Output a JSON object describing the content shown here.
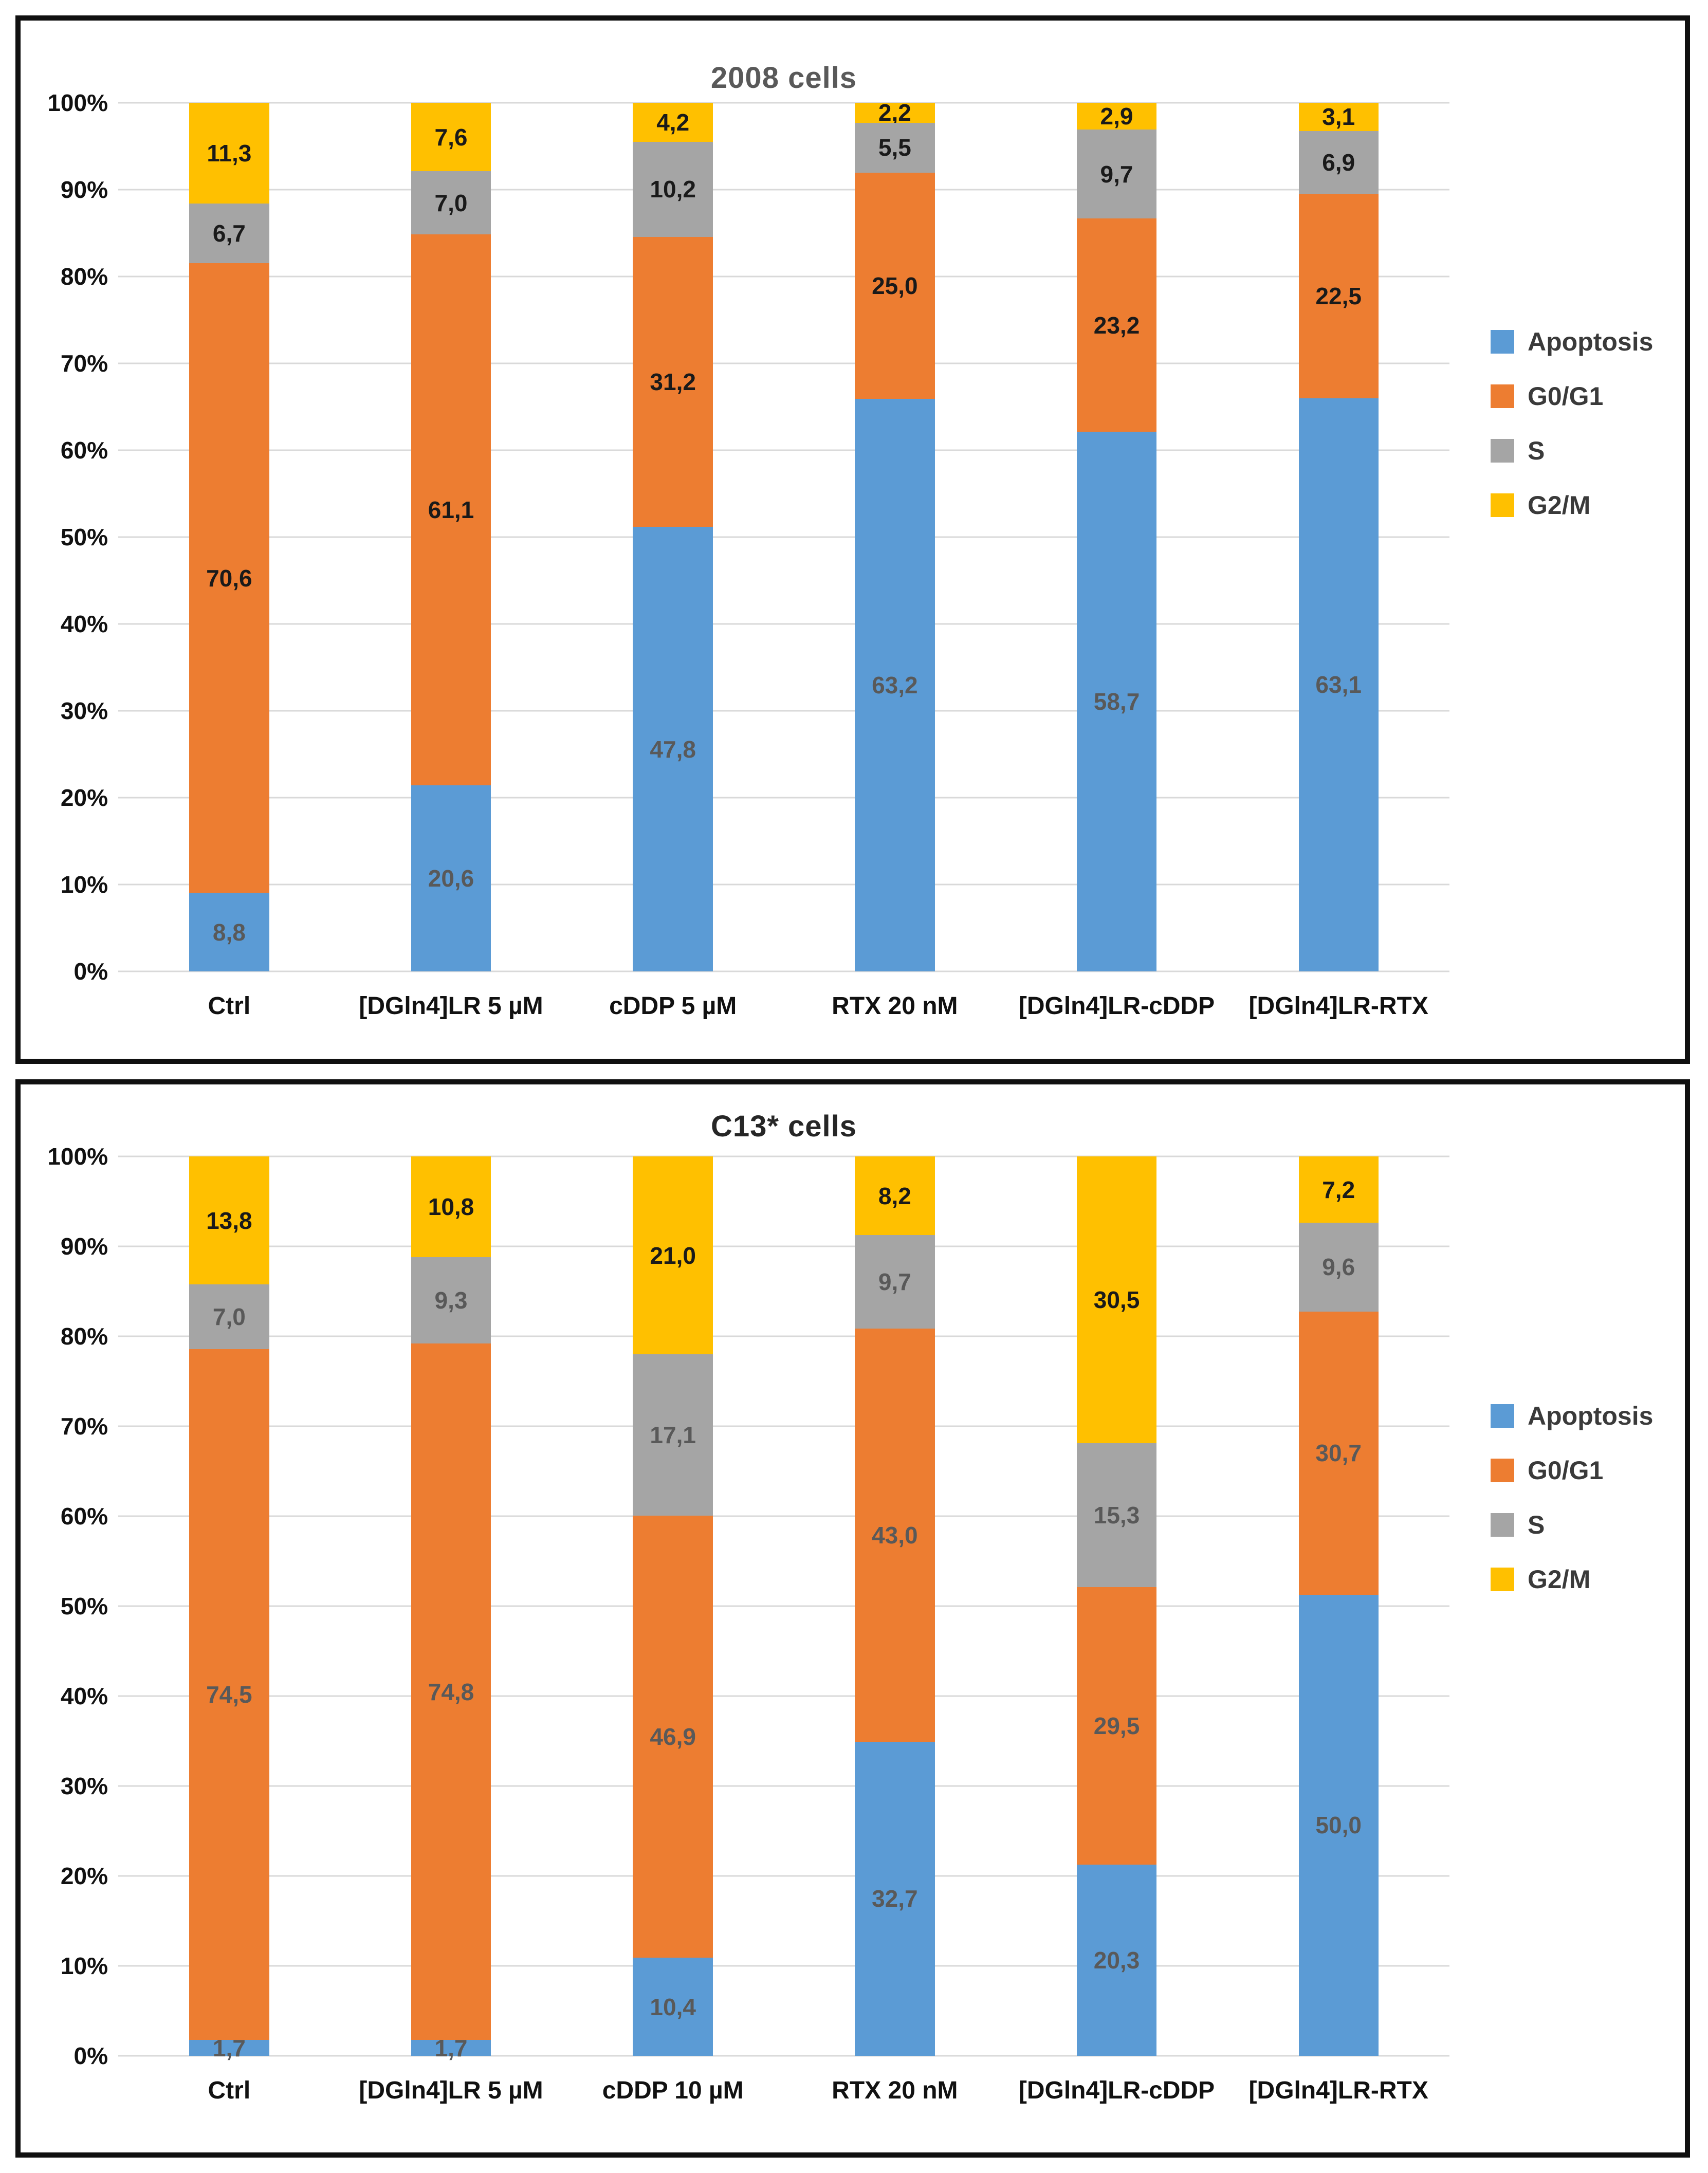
{
  "decimal_separator": ",",
  "chart_data": [
    {
      "type": "bar",
      "variant": "stacked-100",
      "title": "2008 cells",
      "title_color": "#595959",
      "grid": true,
      "legend_position": "right",
      "y_ticks": [
        "0%",
        "10%",
        "20%",
        "30%",
        "40%",
        "50%",
        "60%",
        "70%",
        "80%",
        "90%",
        "100%"
      ],
      "ylim": [
        0,
        100
      ],
      "categories": [
        "Ctrl",
        "[DGln4]LR 5 µM",
        "cDDP 5 µM",
        "RTX 20 nM",
        "[DGln4]LR-cDDP",
        "[DGln4]LR-RTX"
      ],
      "series": [
        {
          "name": "Apoptosis",
          "color": "#5B9BD5",
          "label_color": "#595959",
          "values": [
            8.8,
            20.6,
            47.8,
            63.2,
            58.7,
            63.1
          ]
        },
        {
          "name": "G0/G1",
          "color": "#ED7D31",
          "label_color": "#1a1a1a",
          "values": [
            70.6,
            61.1,
            31.2,
            25.0,
            23.2,
            22.5
          ]
        },
        {
          "name": "S",
          "color": "#A5A5A5",
          "label_color": "#1a1a1a",
          "values": [
            6.7,
            7.0,
            10.2,
            5.5,
            9.7,
            6.9
          ]
        },
        {
          "name": "G2/M",
          "color": "#FFC000",
          "label_color": "#1a1a1a",
          "values": [
            11.3,
            7.6,
            4.2,
            2.2,
            2.9,
            3.1
          ]
        }
      ]
    },
    {
      "type": "bar",
      "variant": "stacked-100",
      "title": "C13* cells",
      "title_color": "#262626",
      "grid": true,
      "legend_position": "right",
      "y_ticks": [
        "0%",
        "10%",
        "20%",
        "30%",
        "40%",
        "50%",
        "60%",
        "70%",
        "80%",
        "90%",
        "100%"
      ],
      "ylim": [
        0,
        100
      ],
      "categories": [
        "Ctrl",
        "[DGln4]LR 5 µM",
        "cDDP 10 µM",
        "RTX 20 nM",
        "[DGln4]LR-cDDP",
        "[DGln4]LR-RTX"
      ],
      "series": [
        {
          "name": "Apoptosis",
          "color": "#5B9BD5",
          "label_color": "#595959",
          "values": [
            1.7,
            1.7,
            10.4,
            32.7,
            20.3,
            50.0
          ]
        },
        {
          "name": "G0/G1",
          "color": "#ED7D31",
          "label_color": "#595959",
          "values": [
            74.5,
            74.8,
            46.9,
            43.0,
            29.5,
            30.7
          ]
        },
        {
          "name": "S",
          "color": "#A5A5A5",
          "label_color": "#595959",
          "values": [
            7.0,
            9.3,
            17.1,
            9.7,
            15.3,
            9.6
          ]
        },
        {
          "name": "G2/M",
          "color": "#FFC000",
          "label_color": "#1a1a1a",
          "values": [
            13.8,
            10.8,
            21.0,
            8.2,
            30.5,
            7.2
          ]
        }
      ]
    }
  ]
}
